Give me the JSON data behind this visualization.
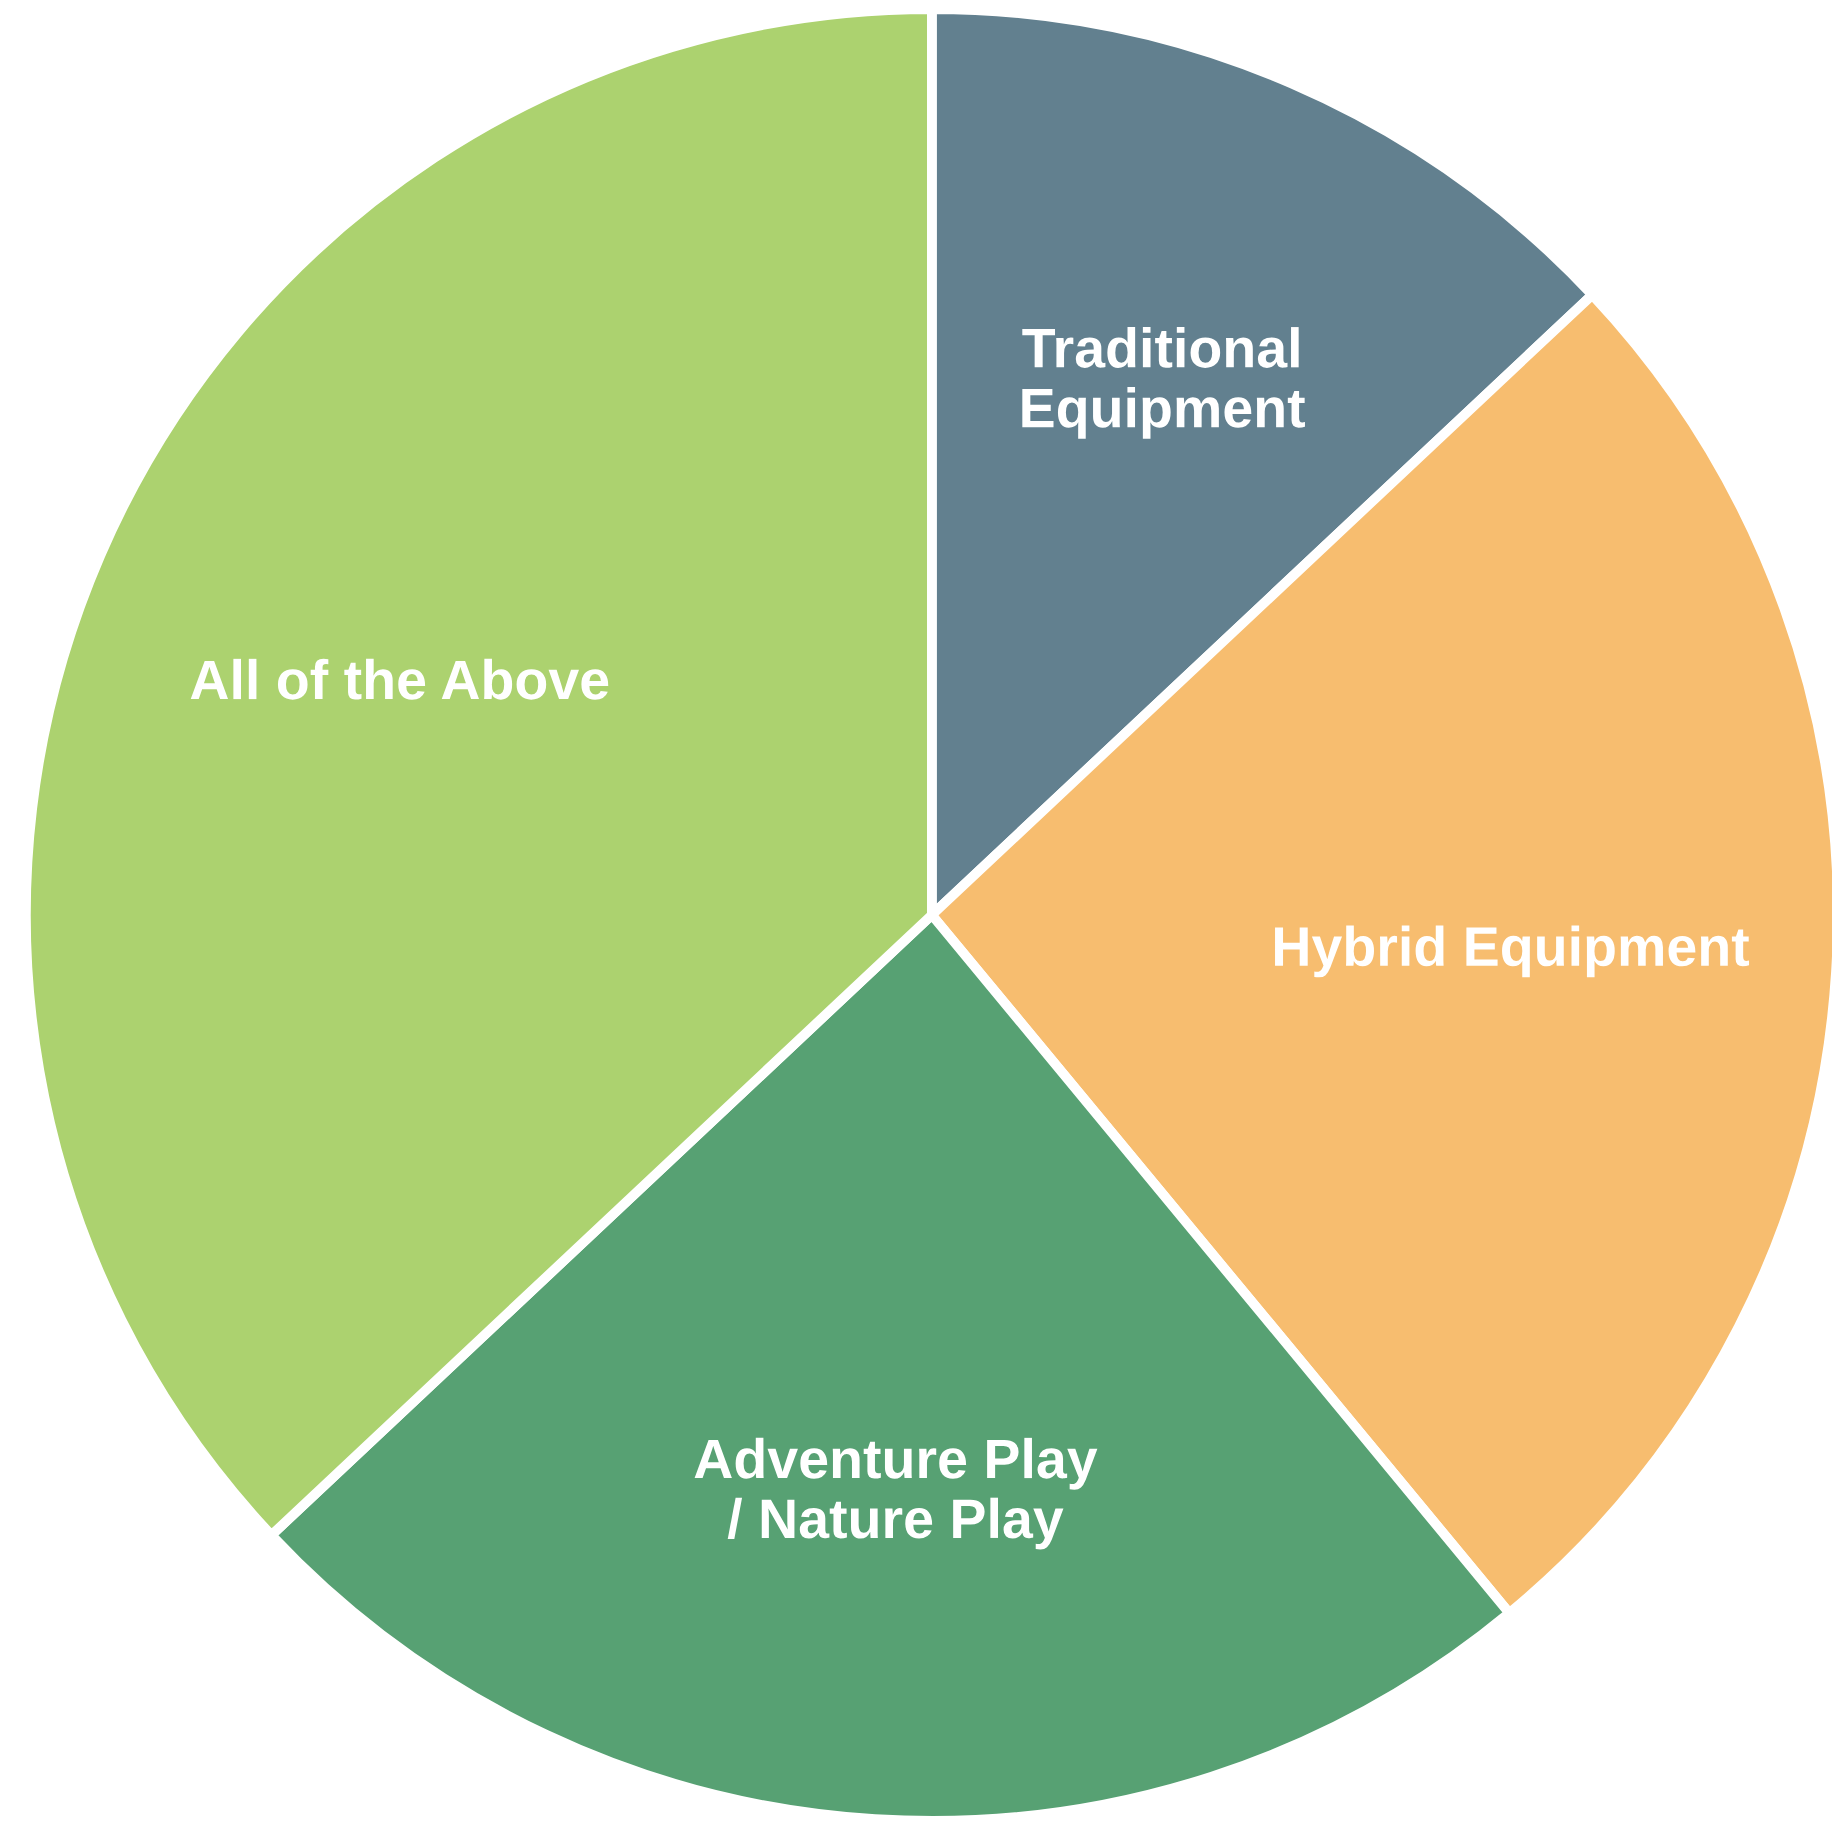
{
  "chart_data": {
    "type": "pie",
    "categories": [
      "Traditional\nEquipment",
      "Hybrid Equipment",
      "Adventure Play\n/ Nature Play",
      "All of the Above"
    ],
    "values": [
      13,
      26,
      24,
      37
    ],
    "colors": [
      "#62808f",
      "#f7bd6f",
      "#57a173",
      "#acd26f"
    ],
    "legend": false
  }
}
